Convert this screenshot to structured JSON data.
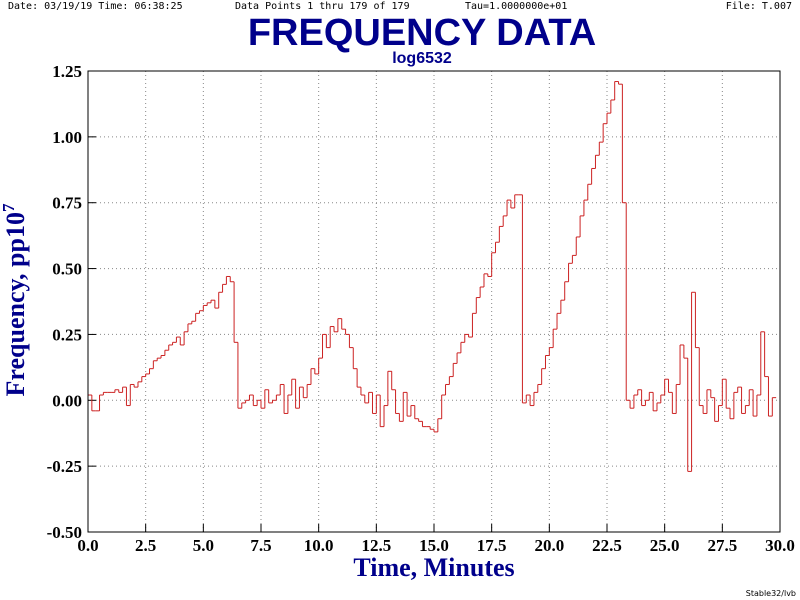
{
  "header": {
    "date": "Date: 03/19/19  Time: 06:38:25",
    "points": "Data Points 1 thru 179 of 179",
    "tau": "Tau=1.0000000e+01",
    "file": "File: T.007"
  },
  "footer": "Stable32/lvb",
  "chart_data": {
    "type": "step",
    "title": "FREQUENCY DATA",
    "subtitle": "log6532",
    "xlabel": "Time,  Minutes",
    "ylabel": "Frequency,  pp10",
    "ylabel_sup": "7",
    "xlim": [
      0,
      30
    ],
    "ylim": [
      -0.5,
      1.25
    ],
    "grid": true,
    "color": "#cc2222",
    "xticks": [
      {
        "value": 0,
        "label": "0.0"
      },
      2.5,
      {
        "value": 5,
        "label": "5.0"
      },
      7.5,
      {
        "value": 10,
        "label": "10.0"
      },
      12.5,
      {
        "value": 15,
        "label": "15.0"
      },
      17.5,
      {
        "value": 20,
        "label": "20.0"
      },
      22.5,
      {
        "value": 25,
        "label": "25.0"
      },
      27.5,
      {
        "value": 30,
        "label": "30.0"
      }
    ],
    "yticks": [
      {
        "value": -0.5,
        "label": "-0.50"
      },
      {
        "value": -0.25,
        "label": "-0.25"
      },
      {
        "value": 0,
        "label": "0.00"
      },
      {
        "value": 0.25,
        "label": "0.25"
      },
      {
        "value": 0.5,
        "label": "0.50"
      },
      {
        "value": 0.75,
        "label": "0.75"
      },
      {
        "value": 1,
        "label": "1.00"
      },
      {
        "value": 1.25,
        "label": "1.25"
      }
    ],
    "x": [
      0,
      0.1667,
      0.3333,
      0.5,
      0.6667,
      0.8333,
      1,
      1.1667,
      1.3333,
      1.5,
      1.6667,
      1.8333,
      2,
      2.1667,
      2.3333,
      2.5,
      2.6667,
      2.8333,
      3,
      3.1667,
      3.3333,
      3.5,
      3.6667,
      3.8333,
      4,
      4.1667,
      4.3333,
      4.5,
      4.6667,
      4.8333,
      5,
      5.1667,
      5.3333,
      5.5,
      5.6667,
      5.8333,
      6,
      6.1667,
      6.3333,
      6.5,
      6.6667,
      6.8333,
      7,
      7.1667,
      7.3333,
      7.5,
      7.6667,
      7.8333,
      8,
      8.1667,
      8.3333,
      8.5,
      8.6667,
      8.8333,
      9,
      9.1667,
      9.3333,
      9.5,
      9.6667,
      9.8333,
      10,
      10.1667,
      10.3333,
      10.5,
      10.6667,
      10.8333,
      11,
      11.1667,
      11.3333,
      11.5,
      11.6667,
      11.8333,
      12,
      12.1667,
      12.3333,
      12.5,
      12.6667,
      12.8333,
      13,
      13.1667,
      13.3333,
      13.5,
      13.6667,
      13.8333,
      14,
      14.1667,
      14.3333,
      14.5,
      14.6667,
      14.8333,
      15,
      15.1667,
      15.3333,
      15.5,
      15.6667,
      15.8333,
      16,
      16.1667,
      16.3333,
      16.5,
      16.6667,
      16.8333,
      17,
      17.1667,
      17.3333,
      17.5,
      17.6667,
      17.8333,
      18,
      18.1667,
      18.3333,
      18.5,
      18.6667,
      18.8333,
      19,
      19.1667,
      19.3333,
      19.5,
      19.6667,
      19.8333,
      20,
      20.1667,
      20.3333,
      20.5,
      20.6667,
      20.8333,
      21,
      21.1667,
      21.3333,
      21.5,
      21.6667,
      21.8333,
      22,
      22.1667,
      22.3333,
      22.5,
      22.6667,
      22.8333,
      23,
      23.1667,
      23.3333,
      23.5,
      23.6667,
      23.8333,
      24,
      24.1667,
      24.3333,
      24.5,
      24.6667,
      24.8333,
      25,
      25.1667,
      25.3333,
      25.5,
      25.6667,
      25.8333,
      26,
      26.1667,
      26.3333,
      26.5,
      26.6667,
      26.8333,
      27,
      27.1667,
      27.3333,
      27.5,
      27.6667,
      27.8333,
      28,
      28.1667,
      28.3333,
      28.5,
      28.6667,
      28.8333,
      29,
      29.1667,
      29.3333,
      29.5,
      29.6667
    ],
    "values": [
      0.02,
      -0.04,
      -0.04,
      0.02,
      0.03,
      0.03,
      0.03,
      0.04,
      0.03,
      0.05,
      -0.02,
      0.06,
      0.05,
      0.07,
      0.09,
      0.1,
      0.12,
      0.15,
      0.16,
      0.17,
      0.19,
      0.21,
      0.22,
      0.24,
      0.21,
      0.26,
      0.29,
      0.3,
      0.33,
      0.34,
      0.36,
      0.37,
      0.38,
      0.35,
      0.41,
      0.44,
      0.47,
      0.45,
      0.22,
      -0.03,
      -0.01,
      0,
      0.02,
      -0.02,
      0,
      -0.03,
      0.04,
      -0.01,
      0,
      0.02,
      0.06,
      -0.05,
      0.02,
      0.08,
      -0.03,
      0.05,
      0.01,
      0.06,
      0.12,
      0.1,
      0.16,
      0.25,
      0.2,
      0.28,
      0.26,
      0.31,
      0.27,
      0.25,
      0.2,
      0.12,
      0.05,
      0.02,
      -0.01,
      0.03,
      -0.05,
      0.02,
      -0.1,
      -0.02,
      0.11,
      0.04,
      -0.05,
      -0.08,
      0.03,
      -0.06,
      -0.02,
      -0.07,
      -0.08,
      -0.1,
      -0.1,
      -0.11,
      -0.12,
      -0.07,
      0.02,
      0.06,
      0.09,
      0.14,
      0.18,
      0.22,
      0.25,
      0.24,
      0.33,
      0.39,
      0.43,
      0.48,
      0.47,
      0.56,
      0.6,
      0.66,
      0.7,
      0.76,
      0.73,
      0.78,
      0.78,
      -0.01,
      0.02,
      -0.02,
      0.03,
      0.06,
      0.12,
      0.17,
      0.2,
      0.27,
      0.33,
      0.38,
      0.45,
      0.52,
      0.55,
      0.62,
      0.7,
      0.76,
      0.82,
      0.88,
      0.93,
      0.98,
      1.05,
      1.09,
      1.14,
      1.21,
      1.2,
      0.75,
      0,
      -0.03,
      0.02,
      0.04,
      -0.02,
      0,
      0.03,
      -0.04,
      -0.01,
      0.02,
      0.08,
      0.03,
      -0.05,
      0.06,
      0.21,
      0.16,
      -0.27,
      0.41,
      0.2,
      -0.02,
      -0.05,
      0.04,
      0.01,
      -0.08,
      -0.02,
      0.08,
      -0.03,
      -0.07,
      0.03,
      0.05,
      -0.05,
      -0.02,
      0.04,
      -0.06,
      0.02,
      0.26,
      0.09,
      -0.06,
      0.01
    ]
  }
}
